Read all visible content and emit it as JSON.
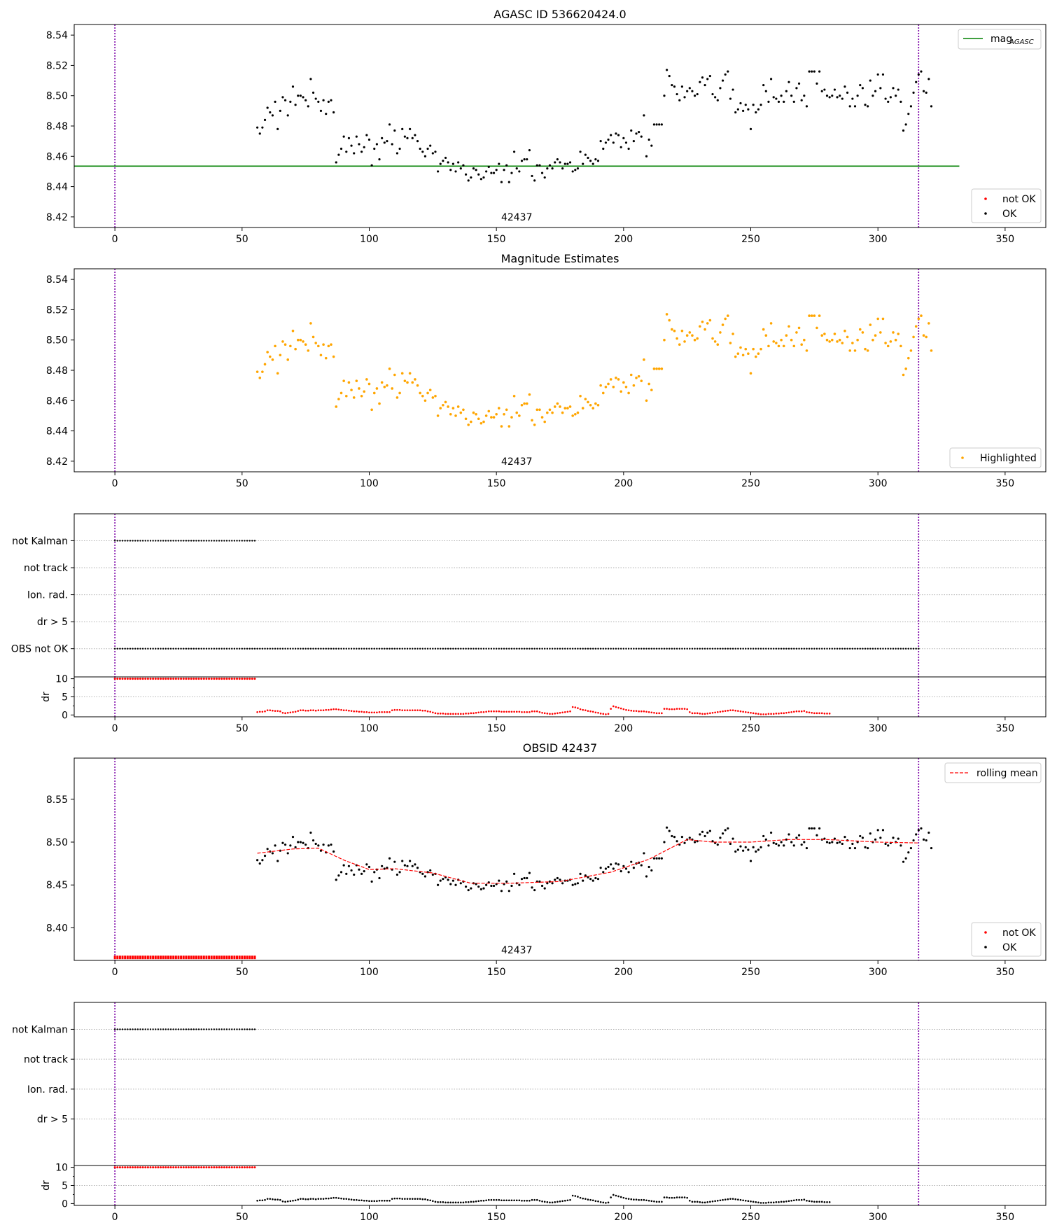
{
  "chart_data": [
    {
      "type": "scatter",
      "title": "AGASC ID 536620424.0",
      "xlim": [
        -16,
        366
      ],
      "ylim": [
        8.413,
        8.547
      ],
      "x_ticks": [
        0,
        50,
        100,
        150,
        200,
        250,
        300,
        350
      ],
      "y_ticks": [
        8.42,
        8.44,
        8.46,
        8.48,
        8.5,
        8.52,
        8.54
      ],
      "vlines": [
        0,
        316
      ],
      "annotation": "42437",
      "annotation_x": 158,
      "reference_line": {
        "label": "mag",
        "label_sub": "AGASC",
        "y": 8.4535,
        "x_range": [
          -16,
          332
        ],
        "color": "#008000"
      },
      "legend_upper": {
        "entries": [
          {
            "label": "mag",
            "sub": "AGASC"
          }
        ],
        "placement": "top-right"
      },
      "legend_lower": {
        "entries": [
          "not OK",
          "OK"
        ],
        "placement": "bottom-right"
      },
      "series": [
        {
          "name": "OK",
          "color": "#000000",
          "source": "mag"
        }
      ]
    },
    {
      "type": "scatter",
      "title": "Magnitude Estimates",
      "xlim": [
        -16,
        366
      ],
      "ylim": [
        8.413,
        8.547
      ],
      "x_ticks": [
        0,
        50,
        100,
        150,
        200,
        250,
        300,
        350
      ],
      "y_ticks": [
        8.42,
        8.44,
        8.46,
        8.48,
        8.5,
        8.52,
        8.54
      ],
      "vlines": [
        0,
        316
      ],
      "annotation": "42437",
      "annotation_x": 158,
      "legend": {
        "entries": [
          "Highlighted"
        ],
        "placement": "bottom-right"
      },
      "series": [
        {
          "name": "Highlighted",
          "color": "#ffa500",
          "source": "mag"
        }
      ]
    },
    {
      "type": "scatter",
      "xlim": [
        -16,
        366
      ],
      "x_ticks": [
        0,
        50,
        100,
        150,
        200,
        250,
        300,
        350
      ],
      "vlines": [
        0,
        316
      ],
      "flag_labels": [
        "not Kalman",
        "not track",
        "Ion. rad.",
        "dr > 5",
        "OBS not OK"
      ],
      "flags": {
        "not Kalman": {
          "x_range": [
            0,
            55
          ],
          "color": "#000000"
        },
        "OBS not OK": {
          "x_range": [
            0,
            316
          ],
          "color": "#000000"
        }
      },
      "dr": {
        "ylabel": "dr",
        "ylim": [
          -0.5,
          10.5
        ],
        "y_ticks": [
          0,
          5,
          10
        ],
        "saturated": {
          "x_range": [
            0,
            55
          ],
          "value": 10
        },
        "color": "#ff0000",
        "source": "dr"
      }
    },
    {
      "type": "line",
      "title": "OBSID 42437",
      "xlim": [
        -16,
        366
      ],
      "ylim": [
        8.362,
        8.598
      ],
      "x_ticks": [
        0,
        50,
        100,
        150,
        200,
        250,
        300,
        350
      ],
      "y_ticks": [
        8.4,
        8.45,
        8.5,
        8.55
      ],
      "vlines": [
        0,
        316
      ],
      "annotation": "42437",
      "annotation_x": 158,
      "legend_upper": {
        "entries": [
          "rolling mean"
        ],
        "placement": "top-right"
      },
      "legend_lower": {
        "entries": [
          "not OK",
          "OK"
        ],
        "placement": "bottom-right"
      },
      "series": [
        {
          "name": "OK",
          "color": "#000000",
          "source": "mag"
        },
        {
          "name": "not OK",
          "color": "#ff0000",
          "x_range": [
            0,
            55
          ],
          "value": 8.3655
        },
        {
          "name": "rolling mean",
          "color": "#ff0000",
          "dashed": true,
          "source": "rolling"
        }
      ]
    },
    {
      "type": "scatter",
      "xlim": [
        -16,
        366
      ],
      "x_ticks": [
        0,
        50,
        100,
        150,
        200,
        250,
        300,
        350
      ],
      "vlines": [
        0,
        316
      ],
      "flag_labels": [
        "not Kalman",
        "not track",
        "Ion. rad.",
        "dr > 5"
      ],
      "flags": {
        "not Kalman": {
          "x_range": [
            0,
            55
          ],
          "color": "#000000"
        }
      },
      "dr": {
        "ylabel": "dr",
        "ylim": [
          -0.5,
          10.5
        ],
        "y_ticks": [
          0,
          5,
          10
        ],
        "saturated": {
          "x_range": [
            0,
            55
          ],
          "value": 10,
          "color": "#ff0000"
        },
        "color": "#000000",
        "source": "dr"
      }
    }
  ],
  "series_data": {
    "mag_x_range": [
      56,
      316
    ],
    "mag_y": [
      8.479,
      8.475,
      8.479,
      8.484,
      8.492,
      8.489,
      8.487,
      8.496,
      8.478,
      8.49,
      8.499,
      8.497,
      8.487,
      8.496,
      8.506,
      8.494,
      8.5,
      8.5,
      8.499,
      8.497,
      8.493,
      8.511,
      8.502,
      8.498,
      8.496,
      8.49,
      8.497,
      8.488,
      8.496,
      8.497,
      8.489,
      8.456,
      8.461,
      8.465,
      8.473,
      8.463,
      8.472,
      8.467,
      8.462,
      8.473,
      8.468,
      8.463,
      8.466,
      8.474,
      8.471,
      8.454,
      8.465,
      8.468,
      8.458,
      8.472,
      8.469,
      8.47,
      8.481,
      8.468,
      8.477,
      8.462,
      8.465,
      8.478,
      8.473,
      8.472,
      8.478,
      8.472,
      8.474,
      8.47,
      8.465,
      8.463,
      8.46,
      8.465,
      8.467,
      8.462,
      8.463,
      8.45,
      8.455,
      8.457,
      8.459,
      8.456,
      8.451,
      8.455,
      8.45,
      8.456,
      8.452,
      8.454,
      8.448,
      8.444,
      8.446,
      8.452,
      8.451,
      8.448,
      8.445,
      8.446,
      8.45,
      8.453,
      8.449,
      8.449,
      8.451,
      8.455,
      8.443,
      8.451,
      8.454,
      8.443,
      8.449,
      8.463,
      8.452,
      8.45,
      8.457,
      8.458,
      8.458,
      8.464,
      8.447,
      8.444,
      8.454,
      8.454,
      8.449,
      8.446,
      8.452,
      8.454,
      8.452,
      8.456,
      8.458,
      8.456,
      8.452,
      8.455,
      8.455,
      8.456,
      8.45,
      8.451,
      8.452,
      8.463,
      8.455,
      8.461,
      8.459,
      8.457,
      8.455,
      8.458,
      8.457,
      8.47,
      8.465,
      8.469,
      8.471,
      8.474,
      8.469,
      8.475,
      8.474,
      8.466,
      8.472,
      8.469,
      8.465,
      8.477,
      8.47,
      8.475,
      8.476,
      8.473,
      8.487,
      8.46,
      8.471,
      8.467,
      8.481,
      8.481,
      8.481,
      8.481,
      8.5,
      8.517,
      8.513,
      8.507,
      8.506,
      8.501,
      8.497,
      8.506,
      8.499,
      8.503,
      8.505,
      8.503,
      8.5,
      8.501,
      8.509,
      8.512,
      8.507,
      8.511,
      8.513,
      8.501,
      8.499,
      8.497,
      8.505,
      8.51,
      8.514,
      8.516,
      8.498,
      8.504,
      8.489,
      8.491,
      8.495,
      8.49,
      8.494,
      8.491,
      8.478,
      8.494,
      8.489,
      8.491,
      8.494,
      8.507,
      8.503,
      8.496,
      8.511,
      8.499,
      8.498,
      8.496,
      8.5,
      8.496,
      8.503,
      8.509,
      8.5,
      8.496,
      8.505,
      8.508,
      8.497,
      8.5,
      8.493,
      8.516,
      8.516,
      8.516,
      8.508,
      8.516,
      8.503,
      8.504,
      8.5,
      8.499,
      8.5,
      8.504,
      8.499,
      8.5,
      8.498,
      8.506,
      8.502,
      8.493,
      8.498,
      8.493,
      8.5,
      8.507,
      8.505,
      8.494,
      8.493,
      8.51,
      8.5,
      8.503,
      8.514,
      8.505,
      8.514,
      8.498,
      8.496,
      8.499,
      8.505,
      8.5,
      8.504,
      8.496,
      8.477,
      8.481,
      8.488,
      8.493,
      8.502,
      8.509,
      8.514,
      8.516,
      8.503,
      8.502,
      8.511,
      8.493
    ],
    "rolling": [
      [
        56,
        8.487
      ],
      [
        70,
        8.492
      ],
      [
        80,
        8.493
      ],
      [
        90,
        8.479
      ],
      [
        100,
        8.468
      ],
      [
        110,
        8.469
      ],
      [
        125,
        8.464
      ],
      [
        140,
        8.452
      ],
      [
        155,
        8.452
      ],
      [
        175,
        8.454
      ],
      [
        195,
        8.465
      ],
      [
        210,
        8.48
      ],
      [
        225,
        8.503
      ],
      [
        235,
        8.5
      ],
      [
        250,
        8.5
      ],
      [
        265,
        8.503
      ],
      [
        280,
        8.503
      ],
      [
        300,
        8.5
      ],
      [
        316,
        8.499
      ]
    ],
    "dr": [
      0.8,
      0.9,
      0.9,
      1.0,
      1.3,
      1.3,
      1.2,
      1.1,
      1.1,
      1.0,
      0.6,
      0.5,
      0.6,
      0.7,
      0.8,
      0.9,
      1.1,
      1.3,
      1.3,
      1.2,
      1.2,
      1.3,
      1.3,
      1.2,
      1.3,
      1.3,
      1.3,
      1.4,
      1.4,
      1.5,
      1.6,
      1.6,
      1.5,
      1.4,
      1.3,
      1.3,
      1.2,
      1.1,
      1.0,
      1.0,
      0.9,
      0.9,
      0.8,
      0.8,
      0.7,
      0.7,
      0.7,
      0.7,
      0.8,
      0.8,
      0.8,
      0.8,
      0.8,
      1.3,
      1.4,
      1.4,
      1.4,
      1.3,
      1.3,
      1.3,
      1.3,
      1.3,
      1.3,
      1.3,
      1.3,
      1.2,
      1.2,
      1.0,
      0.9,
      0.7,
      0.5,
      0.4,
      0.4,
      0.4,
      0.3,
      0.3,
      0.3,
      0.3,
      0.3,
      0.3,
      0.3,
      0.3,
      0.4,
      0.4,
      0.5,
      0.5,
      0.6,
      0.7,
      0.8,
      0.8,
      0.9,
      1.0,
      1.0,
      1.0,
      1.0,
      1.0,
      0.9,
      0.9,
      0.9,
      0.9,
      0.9,
      0.9,
      0.9,
      0.9,
      0.8,
      0.8,
      0.8,
      0.8,
      1.0,
      1.0,
      1.0,
      0.8,
      0.6,
      0.5,
      0.4,
      0.3,
      0.3,
      0.4,
      0.5,
      0.6,
      0.7,
      0.8,
      0.9,
      1.0,
      2.2,
      2.1,
      1.9,
      1.6,
      1.4,
      1.3,
      1.1,
      1.0,
      0.9,
      0.7,
      0.6,
      0.4,
      0.3,
      0.2,
      0.3,
      1.7,
      2.4,
      2.2,
      2.0,
      1.8,
      1.6,
      1.4,
      1.3,
      1.2,
      1.1,
      1.1,
      1.0,
      1.0,
      1.0,
      0.9,
      0.8,
      0.7,
      0.6,
      0.5,
      0.5,
      0.5,
      1.7,
      1.7,
      1.6,
      1.6,
      1.6,
      1.7,
      1.7,
      1.7,
      1.7,
      1.6,
      0.8,
      0.5,
      0.5,
      0.5,
      0.4,
      0.3,
      0.3,
      0.4,
      0.5,
      0.6,
      0.7,
      0.8,
      0.9,
      1.0,
      1.1,
      1.2,
      1.3,
      1.3,
      1.2,
      1.1,
      1.0,
      0.9,
      0.8,
      0.7,
      0.6,
      0.5,
      0.4,
      0.3,
      0.2,
      0.2,
      0.2,
      0.3,
      0.3,
      0.3,
      0.4,
      0.4,
      0.5,
      0.5,
      0.6,
      0.7,
      0.8,
      0.9,
      1.0,
      1.0,
      1.0,
      1.1,
      0.8,
      0.7,
      0.6,
      0.5,
      0.5,
      0.5,
      0.5,
      0.4,
      0.4,
      0.4
    ]
  }
}
